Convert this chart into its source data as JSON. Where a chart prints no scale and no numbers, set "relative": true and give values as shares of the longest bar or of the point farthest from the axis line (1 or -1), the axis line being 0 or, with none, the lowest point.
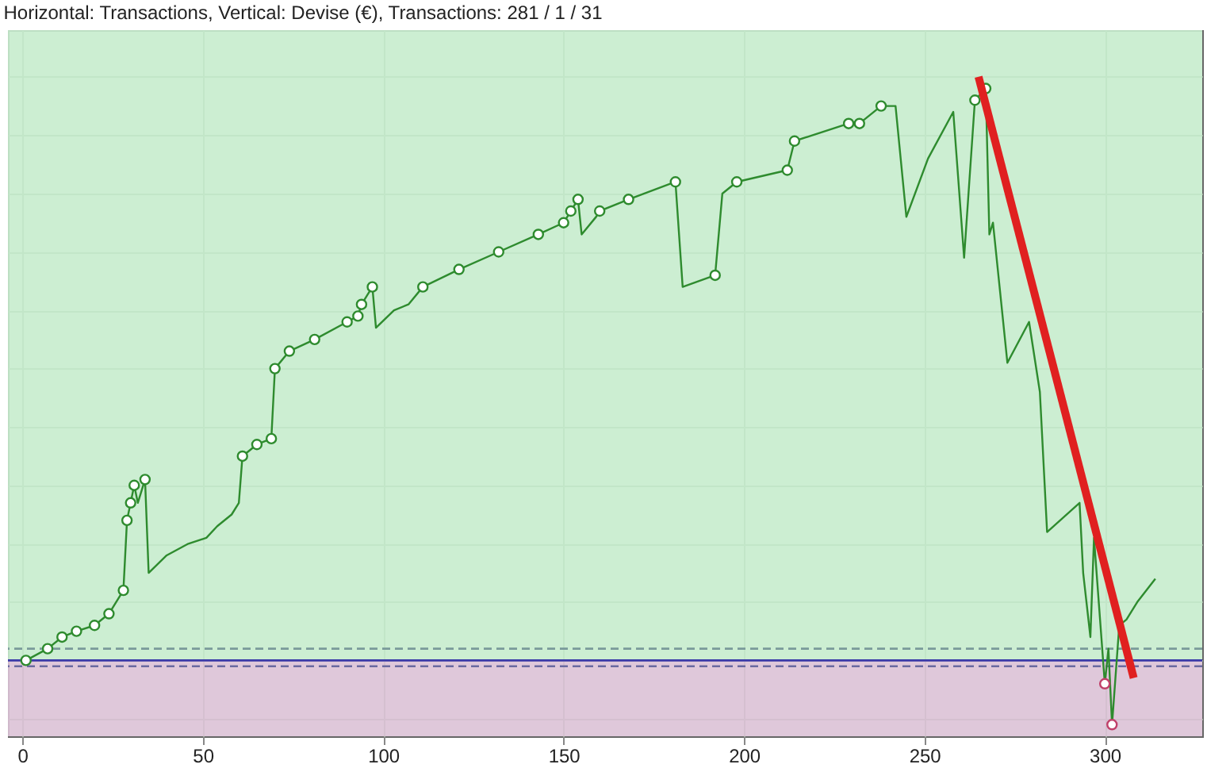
{
  "chart_data": {
    "type": "line",
    "title": "Horizontal: Transactions, Vertical: Devise (€), Transactions: 281 / 1 / 31",
    "relative": true,
    "xlim": [
      -4,
      327
    ],
    "xticks": [
      0,
      50,
      100,
      150,
      200,
      250,
      300
    ],
    "grid": true,
    "line_style": "solid",
    "series": [
      {
        "type": "line",
        "color": "#2e8b2e",
        "x": [
          1,
          7,
          11,
          15,
          20,
          24,
          28,
          29,
          30,
          31,
          32,
          34,
          35,
          40,
          46,
          51,
          54,
          58,
          60,
          61,
          65,
          69,
          70,
          74,
          81,
          90,
          93,
          94,
          97,
          98,
          103,
          107,
          111,
          121,
          132,
          143,
          150,
          152,
          154,
          155,
          159,
          160,
          168,
          181,
          183,
          192,
          194,
          198,
          212,
          214,
          229,
          232,
          238,
          242,
          245,
          251,
          258,
          261,
          264,
          267,
          268,
          269,
          271,
          273,
          279,
          282,
          284,
          293,
          294,
          296,
          297,
          300,
          301,
          302,
          304,
          306,
          309,
          314
        ],
        "values": [
          0.0,
          0.02,
          0.04,
          0.05,
          0.06,
          0.08,
          0.12,
          0.24,
          0.27,
          0.3,
          0.27,
          0.31,
          0.15,
          0.18,
          0.2,
          0.21,
          0.23,
          0.25,
          0.27,
          0.35,
          0.37,
          0.38,
          0.5,
          0.53,
          0.55,
          0.58,
          0.59,
          0.61,
          0.64,
          0.57,
          0.6,
          0.61,
          0.64,
          0.67,
          0.7,
          0.73,
          0.75,
          0.77,
          0.79,
          0.73,
          0.76,
          0.77,
          0.79,
          0.82,
          0.64,
          0.66,
          0.8,
          0.82,
          0.84,
          0.89,
          0.92,
          0.92,
          0.95,
          0.95,
          0.76,
          0.86,
          0.94,
          0.69,
          0.96,
          0.98,
          0.73,
          0.75,
          0.63,
          0.51,
          0.58,
          0.46,
          0.22,
          0.27,
          0.15,
          0.04,
          0.21,
          -0.04,
          0.02,
          -0.11,
          0.06,
          0.07,
          0.1,
          0.14
        ]
      },
      {
        "type": "scatter",
        "marker": "circle",
        "color": "#2e8b2e",
        "x": [
          1,
          7,
          11,
          15,
          20,
          24,
          28,
          29,
          30,
          31,
          34,
          61,
          65,
          69,
          70,
          74,
          81,
          90,
          93,
          94,
          97,
          111,
          121,
          132,
          143,
          150,
          152,
          154,
          160,
          168,
          181,
          192,
          198,
          212,
          214,
          229,
          232,
          238,
          264,
          267
        ],
        "values": [
          0.0,
          0.02,
          0.04,
          0.05,
          0.06,
          0.08,
          0.12,
          0.24,
          0.27,
          0.3,
          0.31,
          0.35,
          0.37,
          0.38,
          0.5,
          0.53,
          0.55,
          0.58,
          0.59,
          0.61,
          0.64,
          0.64,
          0.67,
          0.7,
          0.73,
          0.75,
          0.77,
          0.79,
          0.77,
          0.79,
          0.82,
          0.66,
          0.82,
          0.84,
          0.89,
          0.92,
          0.92,
          0.95,
          0.96,
          0.98
        ]
      },
      {
        "type": "scatter",
        "marker": "circle",
        "color": "#c0406a",
        "x": [
          300,
          302
        ],
        "values": [
          -0.04,
          -0.11
        ]
      },
      {
        "type": "line",
        "color": "#e02020",
        "x": [
          265,
          308
        ],
        "values": [
          1.0,
          -0.03
        ]
      }
    ],
    "ref_lines": [
      {
        "axis": "y",
        "value": 0,
        "color": "#3a3aa8",
        "line_style": "solid"
      },
      {
        "axis": "y",
        "value": 0.02,
        "color": "#7a9a9a",
        "line_style": "dashed"
      },
      {
        "axis": "y",
        "value": -0.01,
        "color": "#6a6aa0",
        "line_style": "dashed"
      }
    ],
    "bands": [
      {
        "axis": "y",
        "from": 0,
        "to": 1.08,
        "color": "#c6eccd"
      },
      {
        "axis": "y",
        "from": -0.13,
        "to": 0,
        "color": "#dcc2d6"
      }
    ]
  }
}
